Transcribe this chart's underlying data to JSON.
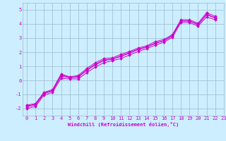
{
  "xlabel": "Windchill (Refroidissement éolien,°C)",
  "bg_color": "#cceeff",
  "line_color": "#cc00cc",
  "grid_color": "#99bbcc",
  "xlim": [
    -0.5,
    23
  ],
  "ylim": [
    -2.5,
    5.5
  ],
  "yticks": [
    -2,
    -1,
    0,
    1,
    2,
    3,
    4,
    5
  ],
  "xticks": [
    0,
    1,
    2,
    3,
    4,
    5,
    6,
    7,
    8,
    9,
    10,
    11,
    12,
    13,
    14,
    15,
    16,
    17,
    18,
    19,
    20,
    21,
    22,
    23
  ],
  "lines": [
    {
      "x": [
        0,
        1,
        2,
        3,
        4,
        5,
        6,
        7,
        8,
        9,
        10,
        11,
        12,
        13,
        14,
        15,
        16,
        17,
        18,
        19,
        20,
        21,
        22
      ],
      "y": [
        -1.75,
        -1.65,
        -0.85,
        -0.65,
        0.45,
        0.25,
        0.35,
        0.85,
        1.25,
        1.55,
        1.6,
        1.85,
        2.05,
        2.3,
        2.45,
        2.75,
        2.9,
        3.25,
        4.3,
        4.3,
        4.05,
        4.8,
        4.55
      ]
    },
    {
      "x": [
        0,
        1,
        2,
        3,
        4,
        5,
        6,
        7,
        8,
        9,
        10,
        11,
        12,
        13,
        14,
        15,
        16,
        17,
        18,
        19,
        20,
        21,
        22
      ],
      "y": [
        -2.0,
        -1.85,
        -1.05,
        -0.85,
        0.15,
        0.1,
        0.1,
        0.55,
        0.95,
        1.25,
        1.4,
        1.55,
        1.8,
        2.05,
        2.25,
        2.5,
        2.7,
        3.05,
        4.1,
        4.1,
        3.85,
        4.5,
        4.3
      ]
    },
    {
      "x": [
        0,
        1,
        2,
        3,
        4,
        5,
        6,
        7,
        8,
        9,
        10,
        11,
        12,
        13,
        14,
        15,
        16,
        17,
        18,
        19,
        20,
        21,
        22
      ],
      "y": [
        -1.88,
        -1.75,
        -0.95,
        -0.75,
        0.3,
        0.18,
        0.22,
        0.7,
        1.1,
        1.4,
        1.5,
        1.7,
        1.92,
        2.18,
        2.35,
        2.62,
        2.8,
        3.15,
        4.2,
        4.2,
        3.95,
        4.65,
        4.42
      ]
    },
    {
      "x": [
        0,
        1,
        2,
        3,
        4,
        5,
        6,
        7,
        8,
        9,
        10,
        11,
        12,
        13,
        14,
        15,
        16,
        17,
        18,
        19,
        20,
        21,
        22
      ],
      "y": [
        -1.82,
        -1.68,
        -0.88,
        -0.72,
        0.38,
        0.22,
        0.28,
        0.75,
        1.15,
        1.45,
        1.52,
        1.75,
        1.98,
        2.22,
        2.38,
        2.65,
        2.82,
        3.18,
        4.22,
        4.22,
        3.98,
        4.7,
        4.45
      ]
    }
  ],
  "tick_fontsize": 5,
  "xlabel_fontsize": 5,
  "marker": "D",
  "markersize": 2,
  "linewidth": 0.7
}
